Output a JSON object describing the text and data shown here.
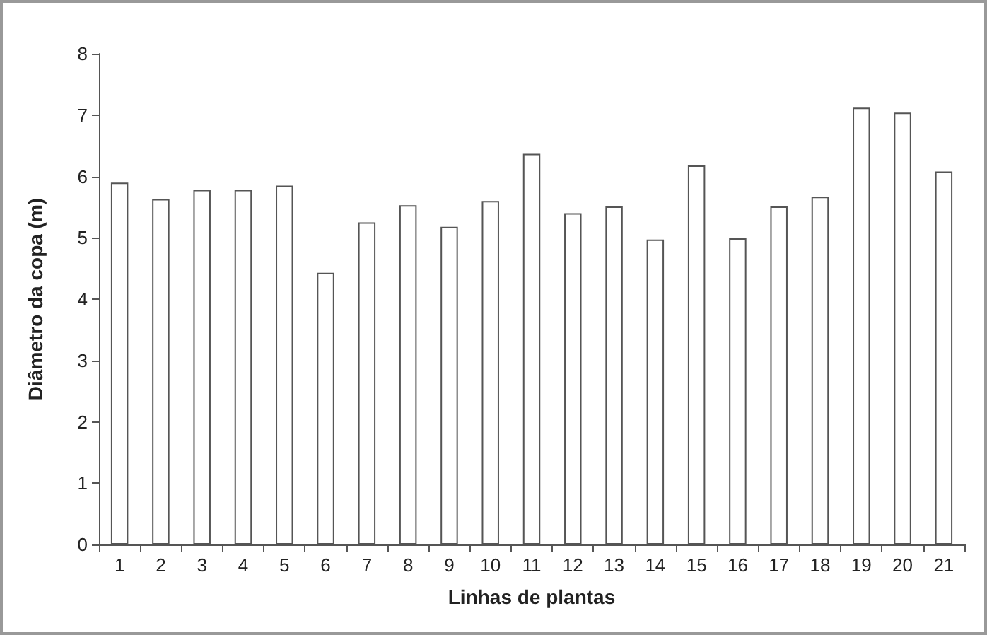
{
  "chart_data": {
    "type": "bar",
    "xlabel": "Linhas de plantas",
    "ylabel": "Diâmetro da copa (m)",
    "categories": [
      "1",
      "2",
      "3",
      "4",
      "5",
      "6",
      "7",
      "8",
      "9",
      "10",
      "11",
      "12",
      "13",
      "14",
      "15",
      "16",
      "17",
      "18",
      "19",
      "20",
      "21"
    ],
    "values": [
      5.9,
      5.63,
      5.78,
      5.78,
      5.85,
      4.43,
      5.25,
      5.53,
      5.18,
      5.6,
      6.37,
      5.4,
      5.51,
      4.97,
      6.18,
      4.99,
      5.51,
      5.67,
      7.12,
      7.04,
      6.08
    ],
    "color": "#ffffff",
    "ylim": [
      0,
      8
    ],
    "yticks": [
      0,
      1,
      2,
      3,
      4,
      5,
      6,
      7,
      8
    ],
    "grid": false
  }
}
